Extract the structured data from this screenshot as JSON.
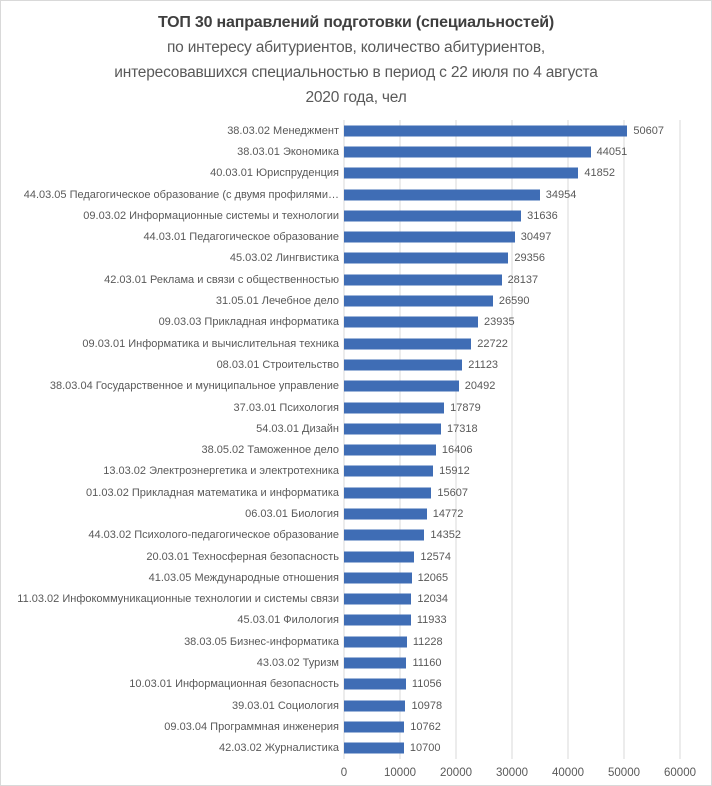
{
  "title": {
    "line1": "ТОП 30 направлений подготовки (специальностей)",
    "line2": "по интересу абитуриентов, количество абитуриентов,",
    "line3": "интересовавшихся специальностью в период с 22 июля по 4 августа",
    "line4": "2020 года, чел"
  },
  "colors": {
    "bar": "#3f6db5",
    "grid_line": "#d9d9d9",
    "axis_text": "#595959",
    "category_text": "#595959",
    "value_text": "#595959",
    "title_main": "#3f3f3f",
    "title_sub": "#595959",
    "background": "#ffffff",
    "border": "#d9d9d9"
  },
  "chart_data": {
    "type": "bar",
    "orientation": "horizontal",
    "title": "ТОП 30 направлений подготовки (специальностей)",
    "subtitle": "по интересу абитуриентов, количество абитуриентов, интересовавшихся специальностью в период с 22 июля по 4 августа 2020 года, чел",
    "categories": [
      "38.03.02 Менеджмент",
      "38.03.01 Экономика",
      "40.03.01 Юриспруденция",
      "44.03.05 Педагогическое образование (с двумя профилями…",
      "09.03.02 Информационные системы и технологии",
      "44.03.01 Педагогическое образование",
      "45.03.02 Лингвистика",
      "42.03.01 Реклама и связи с общественностью",
      "31.05.01 Лечебное дело",
      "09.03.03 Прикладная информатика",
      "09.03.01 Информатика и вычислительная техника",
      "08.03.01 Строительство",
      "38.03.04 Государственное и муниципальное управление",
      "37.03.01 Психология",
      "54.03.01 Дизайн",
      "38.05.02 Таможенное дело",
      "13.03.02 Электроэнергетика и электротехника",
      "01.03.02 Прикладная математика и информатика",
      "06.03.01 Биология",
      "44.03.02 Психолого-педагогическое образование",
      "20.03.01 Техносферная безопасность",
      "41.03.05 Международные отношения",
      "11.03.02 Инфокоммуникационные технологии и системы связи",
      "45.03.01 Филология",
      "38.03.05 Бизнес-информатика",
      "43.03.02 Туризм",
      "10.03.01 Информационная безопасность",
      "39.03.01 Социология",
      "09.03.04 Программная инженерия",
      "42.03.02 Журналистика"
    ],
    "values": [
      50607,
      44051,
      41852,
      34954,
      31636,
      30497,
      29356,
      28137,
      26590,
      23935,
      22722,
      21123,
      20492,
      17879,
      17318,
      16406,
      15912,
      15607,
      14772,
      14352,
      12574,
      12065,
      12034,
      11933,
      11228,
      11160,
      11056,
      10978,
      10762,
      10700
    ],
    "xlabel": "",
    "ylabel": "",
    "xlim": [
      0,
      60000
    ],
    "x_ticks": [
      "0",
      "10000",
      "20000",
      "30000",
      "40000",
      "50000",
      "60000"
    ],
    "grid": "vertical",
    "value_labels": "outside-end",
    "legend": "none"
  }
}
